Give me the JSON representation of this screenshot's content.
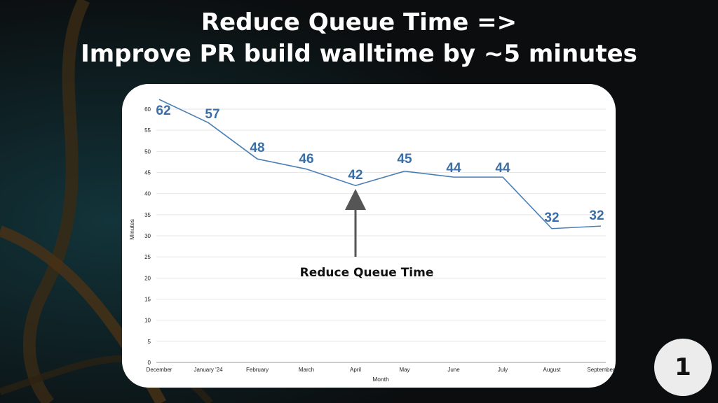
{
  "slide": {
    "title_line1": "Reduce Queue Time =>",
    "title_line2": "Improve PR build walltime by ~5 minutes",
    "page_number": "1"
  },
  "colors": {
    "background": "#0b0d0e",
    "line": "#4a7fb6",
    "data_label": "#3c6ea6",
    "grid": "#e6e6e6",
    "arrow": "#555555"
  },
  "chart_data": {
    "type": "line",
    "title": "",
    "xlabel": "Month",
    "ylabel": "Minutes",
    "ylim": [
      0,
      60
    ],
    "yticks": [
      0,
      5,
      10,
      15,
      20,
      25,
      30,
      35,
      40,
      45,
      50,
      55,
      60
    ],
    "grid": true,
    "categories": [
      "December",
      "January '24",
      "February",
      "March",
      "April",
      "May",
      "June",
      "July",
      "August",
      "September"
    ],
    "series": [
      {
        "values": [
          62,
          57,
          48,
          46,
          42,
          45,
          44,
          44,
          32,
          32
        ],
        "plotted_values": [
          62.3,
          56.8,
          48.2,
          45.8,
          41.9,
          45.3,
          43.9,
          43.9,
          31.7,
          32.3
        ]
      }
    ],
    "annotation": {
      "text": "Reduce Queue Time",
      "category": "April"
    }
  }
}
